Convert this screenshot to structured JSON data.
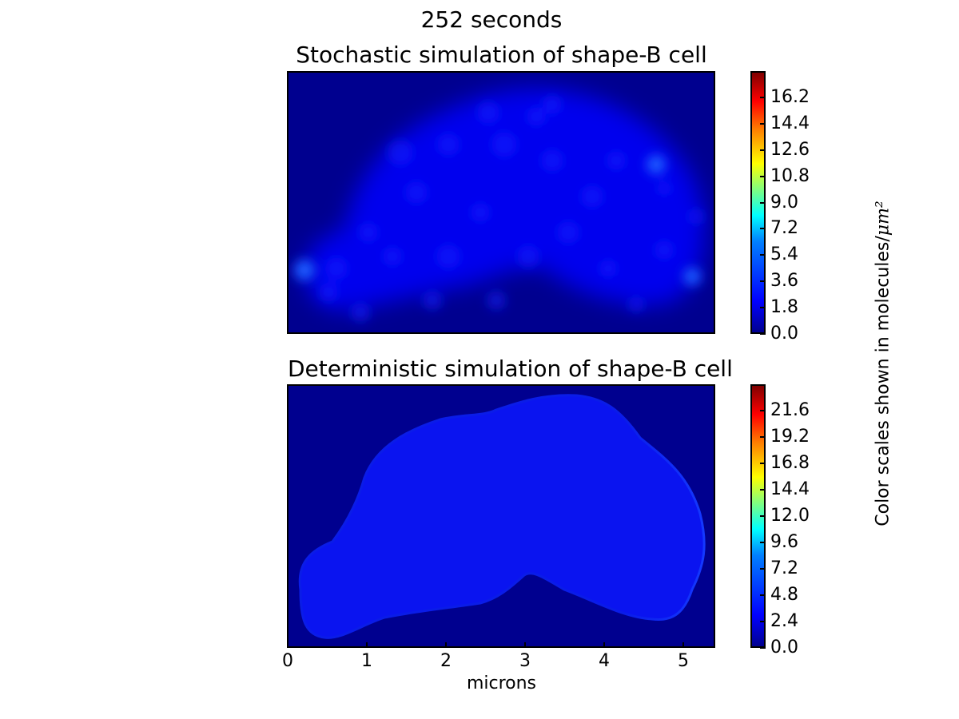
{
  "figure": {
    "suptitle": "252 seconds",
    "side_label": "Color scales shown in molecules/",
    "side_label_unit": "μm²",
    "xlabel": "microns"
  },
  "chart_data": [
    {
      "type": "heatmap",
      "title": "Stochastic simulation of shape-B cell",
      "colormap": "jet",
      "colorbar": {
        "min": 0.0,
        "max": 18.0,
        "ticks": [
          "0.0",
          "1.8",
          "3.6",
          "5.4",
          "7.2",
          "9.0",
          "10.8",
          "12.6",
          "14.4",
          "16.2"
        ]
      },
      "background_color": "#00008f",
      "cell_color": "#0000ff",
      "hotspot_color": "#1e5bff"
    },
    {
      "type": "heatmap",
      "title": "Deterministic simulation of shape-B cell",
      "colormap": "jet",
      "xlabel": "microns",
      "xlim": [
        0,
        6
      ],
      "xticks": [
        "0",
        "1",
        "2",
        "3",
        "4",
        "5"
      ],
      "colorbar": {
        "min": 0.0,
        "max": 24.0,
        "ticks": [
          "0.0",
          "2.4",
          "4.8",
          "7.2",
          "9.6",
          "12.0",
          "14.4",
          "16.8",
          "19.2",
          "21.6"
        ]
      },
      "background_color": "#00008f",
      "cell_color": "#0a14f0"
    }
  ]
}
